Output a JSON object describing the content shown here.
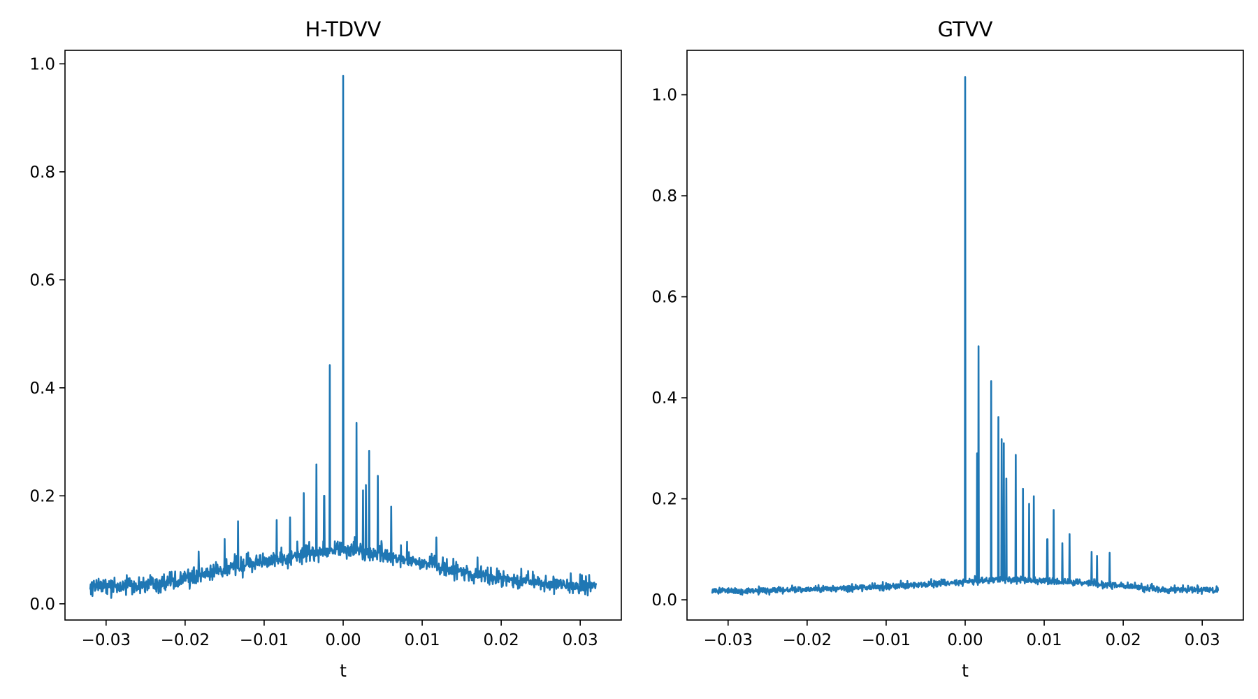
{
  "chart_data": [
    {
      "type": "line",
      "title": "H-TDVV",
      "xlabel": "t",
      "ylabel": "",
      "xlim": [
        -0.0352,
        0.0352
      ],
      "ylim": [
        -0.03,
        1.025
      ],
      "xticks": [
        -0.03,
        -0.02,
        -0.01,
        0.0,
        0.01,
        0.02,
        0.03
      ],
      "xtick_labels": [
        "−0.03",
        "−0.02",
        "−0.01",
        "0.00",
        "0.01",
        "0.02",
        "0.03"
      ],
      "yticks": [
        0.0,
        0.2,
        0.4,
        0.6,
        0.8,
        1.0
      ],
      "ytick_labels": [
        "0.0",
        "0.2",
        "0.4",
        "0.6",
        "0.8",
        "1.0"
      ],
      "grid": false,
      "color": "#1f77b4",
      "series": [
        {
          "x_range": [
            -0.032,
            0.032
          ],
          "baseline": {
            "x": [
              -0.032,
              -0.025,
              -0.02,
              -0.015,
              -0.01,
              -0.005,
              0.0,
              0.005,
              0.01,
              0.015,
              0.02,
              0.025,
              0.032
            ],
            "y": [
              0.032,
              0.035,
              0.045,
              0.062,
              0.078,
              0.092,
              0.1,
              0.09,
              0.075,
              0.058,
              0.045,
              0.037,
              0.032
            ]
          },
          "noise_amplitude": [
            0.01,
            0.05
          ],
          "peaks": [
            {
              "x": 0.0,
              "y": 0.978
            },
            {
              "x": -0.0017,
              "y": 0.442
            },
            {
              "x": 0.0017,
              "y": 0.335
            },
            {
              "x": 0.0033,
              "y": 0.283
            },
            {
              "x": -0.0034,
              "y": 0.258
            },
            {
              "x": 0.0044,
              "y": 0.237
            },
            {
              "x": 0.0029,
              "y": 0.22
            },
            {
              "x": -0.005,
              "y": 0.205
            },
            {
              "x": 0.0025,
              "y": 0.21
            },
            {
              "x": -0.0024,
              "y": 0.2
            },
            {
              "x": 0.0061,
              "y": 0.18
            },
            {
              "x": -0.0067,
              "y": 0.16
            },
            {
              "x": -0.0133,
              "y": 0.153
            },
            {
              "x": -0.0084,
              "y": 0.155
            },
            {
              "x": 0.0118,
              "y": 0.123
            },
            {
              "x": 0.0081,
              "y": 0.115
            },
            {
              "x": -0.015,
              "y": 0.12
            },
            {
              "x": -0.0183,
              "y": 0.097
            },
            {
              "x": 0.017,
              "y": 0.086
            }
          ]
        }
      ]
    },
    {
      "type": "line",
      "title": "GTVV",
      "xlabel": "t",
      "ylabel": "",
      "xlim": [
        -0.0352,
        0.0352
      ],
      "ylim": [
        -0.04,
        1.088
      ],
      "xticks": [
        -0.03,
        -0.02,
        -0.01,
        0.0,
        0.01,
        0.02,
        0.03
      ],
      "xtick_labels": [
        "−0.03",
        "−0.02",
        "−0.01",
        "0.00",
        "0.01",
        "0.02",
        "0.03"
      ],
      "yticks": [
        0.0,
        0.2,
        0.4,
        0.6,
        0.8,
        1.0
      ],
      "ytick_labels": [
        "0.0",
        "0.2",
        "0.4",
        "0.6",
        "0.8",
        "1.0"
      ],
      "grid": false,
      "color": "#1f77b4",
      "series": [
        {
          "x_range": [
            -0.032,
            0.032
          ],
          "baseline": {
            "x": [
              -0.032,
              -0.025,
              -0.015,
              -0.005,
              0.0,
              0.005,
              0.01,
              0.015,
              0.02,
              0.025,
              0.032
            ],
            "y": [
              0.017,
              0.018,
              0.022,
              0.03,
              0.035,
              0.04,
              0.037,
              0.033,
              0.027,
              0.02,
              0.018
            ]
          },
          "noise_amplitude": [
            0.006,
            0.02
          ],
          "peaks": [
            {
              "x": 0.0,
              "y": 1.035
            },
            {
              "x": 0.0017,
              "y": 0.502
            },
            {
              "x": 0.0033,
              "y": 0.433
            },
            {
              "x": 0.0042,
              "y": 0.362
            },
            {
              "x": 0.0046,
              "y": 0.318
            },
            {
              "x": 0.0049,
              "y": 0.31
            },
            {
              "x": 0.0064,
              "y": 0.287
            },
            {
              "x": 0.0015,
              "y": 0.29
            },
            {
              "x": 0.0052,
              "y": 0.24
            },
            {
              "x": 0.0073,
              "y": 0.22
            },
            {
              "x": 0.0087,
              "y": 0.205
            },
            {
              "x": 0.0081,
              "y": 0.19
            },
            {
              "x": 0.0112,
              "y": 0.178
            },
            {
              "x": 0.0104,
              "y": 0.12
            },
            {
              "x": 0.0132,
              "y": 0.13
            },
            {
              "x": 0.0123,
              "y": 0.112
            },
            {
              "x": 0.016,
              "y": 0.095
            },
            {
              "x": 0.0183,
              "y": 0.093
            },
            {
              "x": 0.0167,
              "y": 0.087
            }
          ]
        }
      ]
    }
  ]
}
